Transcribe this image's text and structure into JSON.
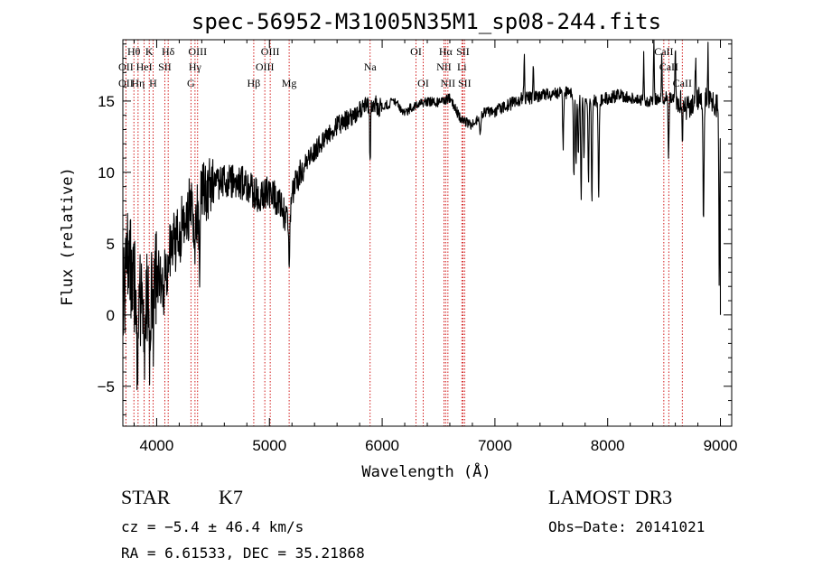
{
  "chart_data": {
    "type": "line",
    "title": "spec-56952-M31005N35M1_sp08-244.fits",
    "xlabel": "Wavelength (Å)",
    "ylabel": "Flux (relative)",
    "xlim": [
      3700,
      9100
    ],
    "ylim": [
      -7.8,
      19.3
    ],
    "x_ticks": [
      4000,
      5000,
      6000,
      7000,
      8000,
      9000
    ],
    "x_tick_labels": [
      "4000",
      "5000",
      "6000",
      "7000",
      "8000",
      "9000"
    ],
    "y_ticks": [
      -5,
      0,
      5,
      10,
      15
    ],
    "y_tick_labels": [
      "−5",
      "0",
      "5",
      "10",
      "15"
    ],
    "spectrum_trend": [
      [
        3700,
        1.0
      ],
      [
        3750,
        4.0
      ],
      [
        3800,
        2.0
      ],
      [
        3850,
        1.0
      ],
      [
        3900,
        2.0
      ],
      [
        3950,
        1.0
      ],
      [
        4000,
        3.0
      ],
      [
        4050,
        1.5
      ],
      [
        4100,
        4.0
      ],
      [
        4150,
        5.0
      ],
      [
        4200,
        5.5
      ],
      [
        4250,
        7.0
      ],
      [
        4300,
        7.5
      ],
      [
        4350,
        7.0
      ],
      [
        4400,
        8.5
      ],
      [
        4500,
        9.0
      ],
      [
        4600,
        9.5
      ],
      [
        4700,
        9.3
      ],
      [
        4800,
        9.2
      ],
      [
        4900,
        8.3
      ],
      [
        5000,
        8.7
      ],
      [
        5100,
        7.8
      ],
      [
        5170,
        6.0
      ],
      [
        5200,
        8.3
      ],
      [
        5300,
        10.5
      ],
      [
        5400,
        11.5
      ],
      [
        5500,
        12.5
      ],
      [
        5600,
        13.3
      ],
      [
        5700,
        13.7
      ],
      [
        5800,
        14.3
      ],
      [
        5900,
        14.8
      ],
      [
        6000,
        14.5
      ],
      [
        6100,
        15.0
      ],
      [
        6200,
        14.2
      ],
      [
        6300,
        14.8
      ],
      [
        6400,
        15.0
      ],
      [
        6500,
        14.9
      ],
      [
        6600,
        15.2
      ],
      [
        6700,
        13.7
      ],
      [
        6800,
        13.3
      ],
      [
        6900,
        14.2
      ],
      [
        7000,
        14.3
      ],
      [
        7100,
        14.6
      ],
      [
        7200,
        15.1
      ],
      [
        7300,
        15.2
      ],
      [
        7400,
        15.4
      ],
      [
        7500,
        15.5
      ],
      [
        7600,
        15.6
      ],
      [
        7700,
        15.5
      ],
      [
        7800,
        15.2
      ],
      [
        7900,
        15.0
      ],
      [
        8000,
        15.2
      ],
      [
        8100,
        15.4
      ],
      [
        8200,
        15.3
      ],
      [
        8300,
        15.0
      ],
      [
        8400,
        15.1
      ],
      [
        8500,
        15.2
      ],
      [
        8600,
        15.3
      ],
      [
        8700,
        14.4
      ],
      [
        8800,
        15.1
      ],
      [
        8900,
        15.0
      ],
      [
        9000,
        14.5
      ]
    ],
    "absorption_features": [
      {
        "x": 3830,
        "depth": 5.0
      },
      {
        "x": 3890,
        "depth": 5.0
      },
      {
        "x": 3934,
        "depth": 4.5
      },
      {
        "x": 3970,
        "depth": 4.0
      },
      {
        "x": 4102,
        "depth": 2.0
      },
      {
        "x": 4340,
        "depth": 3.0
      },
      {
        "x": 4380,
        "depth": 6.5
      },
      {
        "x": 5175,
        "depth": 3.0
      },
      {
        "x": 5893,
        "depth": 4.0
      },
      {
        "x": 6870,
        "depth": 1.5
      },
      {
        "x": 7605,
        "depth": 4.0
      },
      {
        "x": 7700,
        "depth": 6.0
      },
      {
        "x": 7720,
        "depth": 5.0
      },
      {
        "x": 7740,
        "depth": 4.5
      },
      {
        "x": 7765,
        "depth": 7.5
      },
      {
        "x": 7790,
        "depth": 4.0
      },
      {
        "x": 7830,
        "depth": 6.0
      },
      {
        "x": 7860,
        "depth": 7.5
      },
      {
        "x": 7920,
        "depth": 7.0
      },
      {
        "x": 8540,
        "depth": 4.0
      },
      {
        "x": 8662,
        "depth": 3.0
      },
      {
        "x": 8850,
        "depth": 8.0
      },
      {
        "x": 8990,
        "depth": 12.0
      }
    ],
    "emission_features": [
      {
        "x": 7260,
        "height": 3.0
      },
      {
        "x": 7340,
        "height": 2.5
      },
      {
        "x": 8320,
        "height": 3.0
      },
      {
        "x": 8410,
        "height": 4.0
      },
      {
        "x": 8480,
        "height": 3.0
      },
      {
        "x": 8600,
        "height": 3.5
      },
      {
        "x": 8780,
        "height": 3.0
      },
      {
        "x": 8890,
        "height": 3.5
      }
    ],
    "spectral_lines": [
      {
        "x": 3727,
        "label": "OII",
        "row": 1
      },
      {
        "x": 3727,
        "label": "OII",
        "row": 2
      },
      {
        "x": 3798,
        "label": "Hθ",
        "row": 0
      },
      {
        "x": 3835,
        "label": "Hη",
        "row": 2
      },
      {
        "x": 3889,
        "label": "HeI",
        "row": 1
      },
      {
        "x": 3934,
        "label": "K",
        "row": 0
      },
      {
        "x": 3968,
        "label": "H",
        "row": 2
      },
      {
        "x": 4072,
        "label": "SII",
        "row": 1
      },
      {
        "x": 4102,
        "label": "Hδ",
        "row": 0
      },
      {
        "x": 4304,
        "label": "G",
        "row": 2
      },
      {
        "x": 4340,
        "label": "Hγ",
        "row": 1
      },
      {
        "x": 4363,
        "label": "OIII",
        "row": 0
      },
      {
        "x": 4861,
        "label": "Hβ",
        "row": 2
      },
      {
        "x": 4959,
        "label": "OIII",
        "row": 1
      },
      {
        "x": 5007,
        "label": "OIII",
        "row": 0
      },
      {
        "x": 5175,
        "label": "Mg",
        "row": 2
      },
      {
        "x": 5893,
        "label": "Na",
        "row": 1
      },
      {
        "x": 6300,
        "label": "OI",
        "row": 0
      },
      {
        "x": 6364,
        "label": "OI",
        "row": 2
      },
      {
        "x": 6548,
        "label": "NII",
        "row": 1
      },
      {
        "x": 6563,
        "label": "Hα",
        "row": 0
      },
      {
        "x": 6583,
        "label": "NII",
        "row": 2
      },
      {
        "x": 6707,
        "label": "Li",
        "row": 1
      },
      {
        "x": 6716,
        "label": "SII",
        "row": 0
      },
      {
        "x": 6731,
        "label": "SII",
        "row": 2
      },
      {
        "x": 8498,
        "label": "CaII",
        "row": 0
      },
      {
        "x": 8542,
        "label": "CaII",
        "row": 1
      },
      {
        "x": 8662,
        "label": "CaII",
        "row": 2
      }
    ],
    "colors": {
      "spectrum": "#000000",
      "line_markers": "#cc0000",
      "axes": "#000000"
    }
  },
  "info": {
    "class": "STAR",
    "subclass": "K7",
    "survey": "LAMOST DR3",
    "redshift": "cz = −5.4 ± 46.4 km/s",
    "obs_date": "Obs−Date: 20141021",
    "coords": "RA =   6.61533, DEC =  35.21868"
  }
}
